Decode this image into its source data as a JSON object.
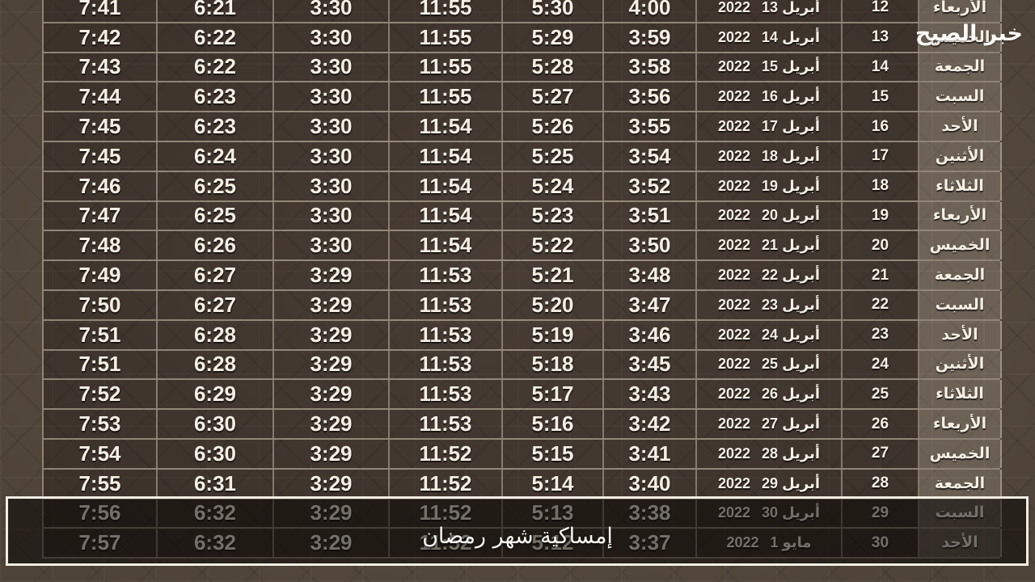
{
  "page": {
    "caption": "إمساكية شهر رمضان",
    "watermark": "خبر الصبح"
  },
  "colors": {
    "page_background": "#594c40",
    "cell_background": "#42382e",
    "day_name_column_background": "#6e6459",
    "text": "#f5efe4",
    "divider": "#a89d8d",
    "overlay_border": "#f1ede4",
    "overlay_fill": "rgba(8,6,4,0.55)"
  },
  "table": {
    "rows": [
      {
        "times": [
          "7:41",
          "6:21",
          "3:30",
          "11:55",
          "5:30",
          "4:00"
        ],
        "date": {
          "year": "2022",
          "day_month": "13 أبريل"
        },
        "day_number": "12",
        "day_name": "الأربعاء"
      },
      {
        "times": [
          "7:42",
          "6:22",
          "3:30",
          "11:55",
          "5:29",
          "3:59"
        ],
        "date": {
          "year": "2022",
          "day_month": "14 أبريل"
        },
        "day_number": "13",
        "day_name": "الخميس"
      },
      {
        "times": [
          "7:43",
          "6:22",
          "3:30",
          "11:55",
          "5:28",
          "3:58"
        ],
        "date": {
          "year": "2022",
          "day_month": "15 أبريل"
        },
        "day_number": "14",
        "day_name": "الجمعة"
      },
      {
        "times": [
          "7:44",
          "6:23",
          "3:30",
          "11:55",
          "5:27",
          "3:56"
        ],
        "date": {
          "year": "2022",
          "day_month": "16 أبريل"
        },
        "day_number": "15",
        "day_name": "السبت"
      },
      {
        "times": [
          "7:45",
          "6:23",
          "3:30",
          "11:54",
          "5:26",
          "3:55"
        ],
        "date": {
          "year": "2022",
          "day_month": "17 أبريل"
        },
        "day_number": "16",
        "day_name": "الأحد"
      },
      {
        "times": [
          "7:45",
          "6:24",
          "3:30",
          "11:54",
          "5:25",
          "3:54"
        ],
        "date": {
          "year": "2022",
          "day_month": "18 أبريل"
        },
        "day_number": "17",
        "day_name": "الأثنين"
      },
      {
        "times": [
          "7:46",
          "6:25",
          "3:30",
          "11:54",
          "5:24",
          "3:52"
        ],
        "date": {
          "year": "2022",
          "day_month": "19 أبريل"
        },
        "day_number": "18",
        "day_name": "الثلاثاء"
      },
      {
        "times": [
          "7:47",
          "6:25",
          "3:30",
          "11:54",
          "5:23",
          "3:51"
        ],
        "date": {
          "year": "2022",
          "day_month": "20 أبريل"
        },
        "day_number": "19",
        "day_name": "الأربعاء"
      },
      {
        "times": [
          "7:48",
          "6:26",
          "3:30",
          "11:54",
          "5:22",
          "3:50"
        ],
        "date": {
          "year": "2022",
          "day_month": "21 أبريل"
        },
        "day_number": "20",
        "day_name": "الخميس"
      },
      {
        "times": [
          "7:49",
          "6:27",
          "3:29",
          "11:53",
          "5:21",
          "3:48"
        ],
        "date": {
          "year": "2022",
          "day_month": "22 أبريل"
        },
        "day_number": "21",
        "day_name": "الجمعة"
      },
      {
        "times": [
          "7:50",
          "6:27",
          "3:29",
          "11:53",
          "5:20",
          "3:47"
        ],
        "date": {
          "year": "2022",
          "day_month": "23 أبريل"
        },
        "day_number": "22",
        "day_name": "السبت"
      },
      {
        "times": [
          "7:51",
          "6:28",
          "3:29",
          "11:53",
          "5:19",
          "3:46"
        ],
        "date": {
          "year": "2022",
          "day_month": "24 أبريل"
        },
        "day_number": "23",
        "day_name": "الأحد"
      },
      {
        "times": [
          "7:51",
          "6:28",
          "3:29",
          "11:53",
          "5:18",
          "3:45"
        ],
        "date": {
          "year": "2022",
          "day_month": "25 أبريل"
        },
        "day_number": "24",
        "day_name": "الأثنين"
      },
      {
        "times": [
          "7:52",
          "6:29",
          "3:29",
          "11:53",
          "5:17",
          "3:43"
        ],
        "date": {
          "year": "2022",
          "day_month": "26 أبريل"
        },
        "day_number": "25",
        "day_name": "الثلاثاء"
      },
      {
        "times": [
          "7:53",
          "6:30",
          "3:29",
          "11:53",
          "5:16",
          "3:42"
        ],
        "date": {
          "year": "2022",
          "day_month": "27 أبريل"
        },
        "day_number": "26",
        "day_name": "الأربعاء"
      },
      {
        "times": [
          "7:54",
          "6:30",
          "3:29",
          "11:52",
          "5:15",
          "3:41"
        ],
        "date": {
          "year": "2022",
          "day_month": "28 أبريل"
        },
        "day_number": "27",
        "day_name": "الخميس"
      },
      {
        "times": [
          "7:55",
          "6:31",
          "3:29",
          "11:52",
          "5:14",
          "3:40"
        ],
        "date": {
          "year": "2022",
          "day_month": "29 أبريل"
        },
        "day_number": "28",
        "day_name": "الجمعة"
      },
      {
        "times": [
          "7:56",
          "6:32",
          "3:29",
          "11:52",
          "5:13",
          "3:38"
        ],
        "date": {
          "year": "2022",
          "day_month": "30 أبريل"
        },
        "day_number": "29",
        "day_name": "السبت"
      },
      {
        "times": [
          "7:57",
          "6:32",
          "3:29",
          "11:52",
          "5:12",
          "3:37"
        ],
        "date": {
          "year": "2022",
          "day_month": "1 مايو"
        },
        "day_number": "30",
        "day_name": "الأحد"
      }
    ]
  }
}
